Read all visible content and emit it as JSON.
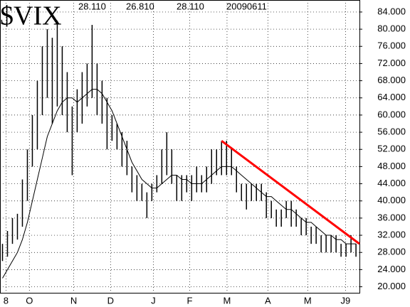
{
  "chart_data": {
    "type": "hlc_bar",
    "title": "$VIX",
    "header_values": [
      "28.110",
      "26.810",
      "28.110",
      "20090611"
    ],
    "x": [
      0,
      1,
      2,
      3,
      4,
      5,
      6,
      7,
      8,
      9,
      10,
      11,
      12,
      13,
      14,
      15,
      16,
      17,
      18,
      19,
      20,
      21,
      22,
      23,
      24,
      25,
      26,
      27,
      28,
      29,
      30,
      31,
      32,
      33,
      34,
      35,
      36,
      37,
      38,
      39,
      40,
      41,
      42,
      43,
      44,
      45,
      46,
      47,
      48,
      49,
      50,
      51,
      52,
      53,
      54,
      55,
      56,
      57,
      58,
      59,
      60,
      61,
      62,
      63,
      64,
      65,
      66,
      67,
      68,
      69,
      70,
      71
    ],
    "high": [
      30,
      33,
      36,
      37,
      45,
      52,
      60,
      68,
      76,
      80,
      78,
      82,
      76,
      70,
      62,
      66,
      70,
      72,
      81,
      72,
      68,
      64,
      60,
      58,
      56,
      54,
      48,
      46,
      44,
      42,
      44,
      46,
      52,
      56,
      52,
      46,
      46,
      46,
      46,
      48,
      46,
      48,
      52,
      52,
      54,
      54,
      52,
      48,
      44,
      44,
      44,
      44,
      44,
      42,
      40,
      38,
      38,
      40,
      40,
      38,
      36,
      36,
      34,
      34,
      32,
      32,
      32,
      32,
      30,
      30,
      32,
      30
    ],
    "low": [
      26,
      27,
      30,
      31,
      34,
      40,
      48,
      52,
      60,
      64,
      58,
      62,
      60,
      56,
      46,
      56,
      58,
      62,
      64,
      60,
      58,
      52,
      54,
      52,
      48,
      46,
      42,
      40,
      40,
      36,
      40,
      42,
      44,
      46,
      44,
      40,
      40,
      42,
      40,
      42,
      42,
      42,
      44,
      46,
      46,
      46,
      46,
      42,
      40,
      38,
      40,
      40,
      40,
      36,
      36,
      34,
      34,
      36,
      34,
      34,
      32,
      32,
      30,
      30,
      28,
      28,
      28,
      28,
      27,
      27,
      28,
      27
    ],
    "series": [
      {
        "name": "moving average",
        "color": "#000000",
        "values": [
          22,
          24,
          26,
          28,
          31,
          35,
          40,
          45,
          50,
          55,
          58,
          61,
          63,
          64,
          64,
          63,
          64,
          65,
          66,
          66,
          65,
          63,
          61,
          58,
          55,
          52,
          49,
          47,
          45,
          44,
          43,
          43,
          44,
          45,
          46,
          46,
          45,
          45,
          44,
          44,
          44,
          45,
          46,
          47,
          48,
          48,
          48,
          47,
          46,
          45,
          44,
          43,
          42,
          41,
          41,
          40,
          39,
          38,
          38,
          37,
          36,
          35,
          35,
          34,
          33,
          32,
          32,
          31,
          31,
          30,
          30,
          30
        ]
      }
    ],
    "trendline": {
      "color": "#ff0000",
      "x": [
        44,
        71.7
      ],
      "values": [
        54,
        30
      ]
    },
    "xlim": [
      -0.5,
      71.7
    ],
    "xticks": [
      {
        "value": 0.7,
        "label": "8"
      },
      {
        "value": 5.4,
        "label": "O"
      },
      {
        "value": 14.3,
        "label": "N"
      },
      {
        "value": 21.7,
        "label": "D"
      },
      {
        "value": 30.3,
        "label": "J"
      },
      {
        "value": 37.6,
        "label": "F"
      },
      {
        "value": 45.1,
        "label": "M"
      },
      {
        "value": 53.3,
        "label": "A"
      },
      {
        "value": 61.3,
        "label": "M"
      },
      {
        "value": 68.9,
        "label": "J9"
      }
    ],
    "ylim": [
      18.6,
      86.8
    ],
    "yticks": [
      {
        "value": 20,
        "label": "20.000"
      },
      {
        "value": 24,
        "label": "24.000"
      },
      {
        "value": 28,
        "label": "28.000"
      },
      {
        "value": 32,
        "label": "32.000"
      },
      {
        "value": 36,
        "label": "36.000"
      },
      {
        "value": 40,
        "label": "40.000"
      },
      {
        "value": 44,
        "label": "44.000"
      },
      {
        "value": 48,
        "label": "48.000"
      },
      {
        "value": 52,
        "label": "52.000"
      },
      {
        "value": 56,
        "label": "56.000"
      },
      {
        "value": 60,
        "label": "60.000"
      },
      {
        "value": 64,
        "label": "64.000"
      },
      {
        "value": 68,
        "label": "68.000"
      },
      {
        "value": 72,
        "label": "72.000"
      },
      {
        "value": 76,
        "label": "76.000"
      },
      {
        "value": 80,
        "label": "80.000"
      },
      {
        "value": 84,
        "label": "84.000"
      }
    ],
    "grid": true
  }
}
